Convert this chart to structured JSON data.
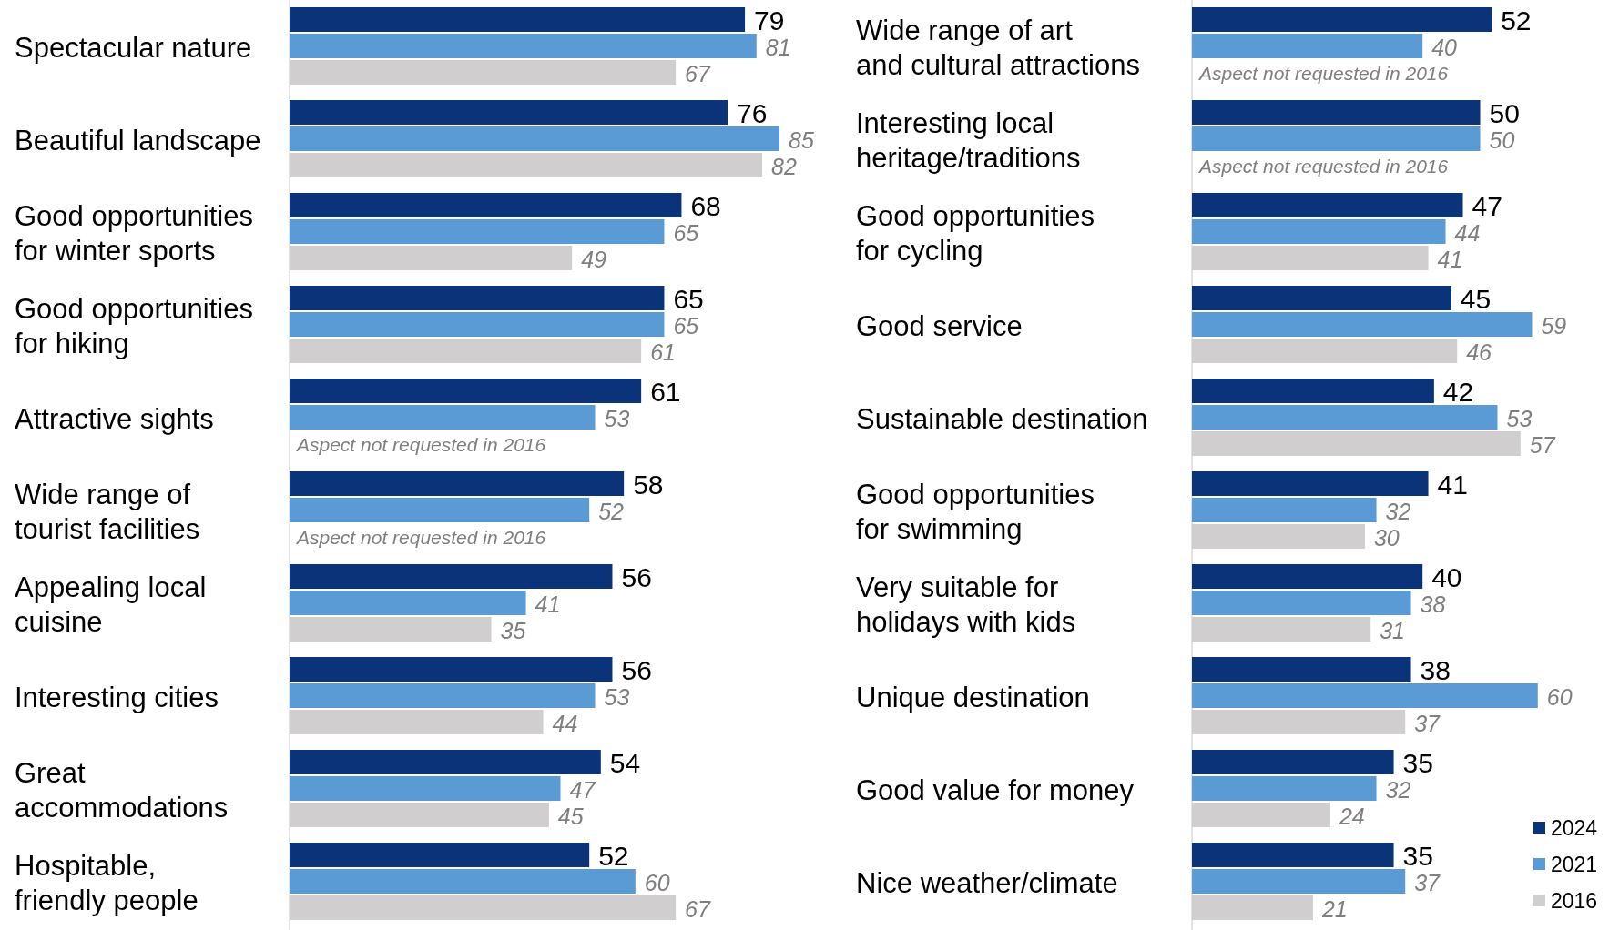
{
  "chart_data": [
    {
      "type": "bar",
      "orientation": "horizontal",
      "categories": [
        "Spectacular nature",
        "Beautiful landscape",
        "Good opportunities\nfor winter sports",
        "Good opportunities\nfor hiking",
        "Attractive sights",
        "Wide range of\ntourist facilities",
        "Appealing local\ncuisine",
        "Interesting cities",
        "Great\naccommodations",
        "Hospitable,\nfriendly people"
      ],
      "series": [
        {
          "color": "#0b337a",
          "values": [
            79,
            76,
            68,
            65,
            61,
            58,
            56,
            56,
            54,
            52
          ]
        },
        {
          "color": "#5b9bd5",
          "values": [
            81,
            85,
            65,
            65,
            53,
            52,
            41,
            53,
            47,
            60
          ]
        },
        {
          "color": "#d0cece",
          "values": [
            67,
            82,
            49,
            61,
            null,
            null,
            35,
            44,
            45,
            67
          ]
        }
      ],
      "data_labels": true,
      "legend": false,
      "tick_labels": "y",
      "annotations": [
        "Aspect not requested in 2016",
        "Aspect not requested in 2016"
      ]
    },
    {
      "type": "bar",
      "orientation": "horizontal",
      "categories": [
        "Wide range of art\nand cultural attractions",
        "Interesting local\nheritage/traditions",
        "Good opportunities\nfor cycling",
        "Good service",
        "Sustainable destination",
        "Good opportunities\nfor swimming",
        "Very suitable for\nholidays with kids",
        "Unique destination",
        "Good value for money",
        "Nice weather/climate"
      ],
      "series": [
        {
          "name": "2024",
          "color": "#0b337a",
          "values": [
            52,
            50,
            47,
            45,
            42,
            41,
            40,
            38,
            35,
            35
          ]
        },
        {
          "name": "2021",
          "color": "#5b9bd5",
          "values": [
            40,
            50,
            44,
            59,
            53,
            32,
            38,
            60,
            32,
            37
          ]
        },
        {
          "name": "2016",
          "color": "#d0cece",
          "values": [
            null,
            null,
            41,
            46,
            57,
            30,
            31,
            37,
            24,
            21
          ]
        }
      ],
      "data_labels": true,
      "legend": "bottom right",
      "tick_labels": "y",
      "annotations": [
        "Aspect not requested in 2016",
        "Aspect not requested in 2016"
      ]
    }
  ]
}
